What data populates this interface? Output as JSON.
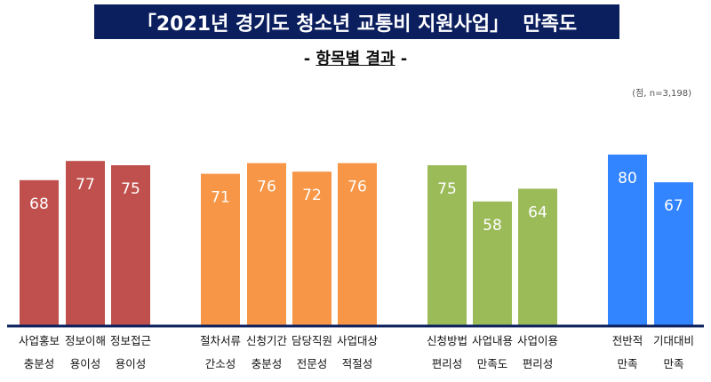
{
  "chart_data": {
    "type": "bar",
    "title": "「2021년 경기도 청소년 교통비 지원사업」  만족도",
    "subtitle_prefix": "- ",
    "subtitle": "항목별 결과",
    "subtitle_suffix": " -",
    "unit_note": "(점, n=3,198)",
    "ylim": [
      0,
      100
    ],
    "groups": [
      {
        "color": "#c0504d",
        "items": [
          {
            "label": [
              "사업홍보",
              "충분성"
            ],
            "value": 68
          },
          {
            "label": [
              "정보이해",
              "용이성"
            ],
            "value": 77
          },
          {
            "label": [
              "정보접근",
              "용이성"
            ],
            "value": 75
          }
        ]
      },
      {
        "color": "#f79646",
        "items": [
          {
            "label": [
              "절차서류",
              "간소성"
            ],
            "value": 71
          },
          {
            "label": [
              "신청기간",
              "충분성"
            ],
            "value": 76
          },
          {
            "label": [
              "담당직원",
              "전문성"
            ],
            "value": 72
          },
          {
            "label": [
              "사업대상",
              "적절성"
            ],
            "value": 76
          }
        ]
      },
      {
        "color": "#9bbb59",
        "items": [
          {
            "label": [
              "신청방법",
              "편리성"
            ],
            "value": 75
          },
          {
            "label": [
              "사업내용",
              "만족도"
            ],
            "value": 58
          },
          {
            "label": [
              "사업이용",
              "편리성"
            ],
            "value": 64
          }
        ]
      },
      {
        "color": "#3385ff",
        "items": [
          {
            "label": [
              "전반적",
              "만족"
            ],
            "value": 80
          },
          {
            "label": [
              "기대대비",
              "만족"
            ],
            "value": 67
          }
        ]
      }
    ],
    "axis_color": "#0b1f5e"
  }
}
